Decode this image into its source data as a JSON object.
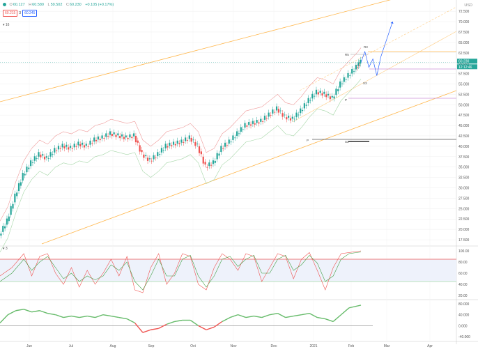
{
  "header": {
    "open_label": "O",
    "open": "60.127",
    "high_label": "H",
    "high": "60.580",
    "low_label": "L",
    "low": "59.502",
    "close_label": "C",
    "close": "60.230",
    "change": "+0.105 (+0.17%)",
    "bid": "60.215",
    "spread": "3",
    "ask": "60.245",
    "period_label": "16"
  },
  "indicator_labels": {
    "stoch": "3"
  },
  "colors": {
    "up": "#26a69a",
    "down": "#ef5350",
    "bg": "#ffffff",
    "grid": "#eeeeee",
    "price_tag": "#26a69a",
    "accent": "#2962ff"
  },
  "chart_data": [
    {
      "type": "candlestick",
      "currency": "USD",
      "x_ticks": [
        "Jun",
        "Jul",
        "Aug",
        "Sep",
        "Oct",
        "Nov",
        "Dec",
        "2021",
        "Feb",
        "Mar",
        "Apr"
      ],
      "y_ticks": [
        "72.500",
        "70.000",
        "67.500",
        "65.000",
        "62.500",
        "60.000",
        "57.500",
        "55.000",
        "52.500",
        "50.000",
        "47.500",
        "45.000",
        "42.500",
        "40.000",
        "37.500",
        "35.000",
        "32.500",
        "30.000",
        "27.500",
        "25.000",
        "22.500",
        "20.000",
        "17.500"
      ],
      "ylim": [
        16.5,
        74.2
      ],
      "last_price": "60.230",
      "countdown": "12:12:46",
      "pivot_labels": [
        "R3",
        "R5",
        "S3",
        "P",
        "P",
        "S3"
      ],
      "close_path": [
        [
          0,
          18.5
        ],
        [
          4,
          22
        ],
        [
          8,
          28
        ],
        [
          12,
          33
        ],
        [
          16,
          36
        ],
        [
          20,
          38
        ],
        [
          24,
          37
        ],
        [
          28,
          39
        ],
        [
          32,
          40
        ],
        [
          36,
          39.5
        ],
        [
          40,
          40.5
        ],
        [
          44,
          40
        ],
        [
          48,
          41.5
        ],
        [
          52,
          42
        ],
        [
          56,
          43
        ],
        [
          60,
          42.5
        ],
        [
          64,
          42
        ],
        [
          68,
          42.5
        ],
        [
          72,
          38
        ],
        [
          76,
          36.5
        ],
        [
          80,
          38
        ],
        [
          84,
          40
        ],
        [
          88,
          40.5
        ],
        [
          92,
          41
        ],
        [
          96,
          42
        ],
        [
          100,
          40
        ],
        [
          104,
          35
        ],
        [
          108,
          36
        ],
        [
          112,
          39.5
        ],
        [
          116,
          41
        ],
        [
          120,
          43
        ],
        [
          124,
          45
        ],
        [
          128,
          45.5
        ],
        [
          132,
          46
        ],
        [
          136,
          47.5
        ],
        [
          140,
          49
        ],
        [
          144,
          47
        ],
        [
          148,
          46.5
        ],
        [
          152,
          48.5
        ],
        [
          156,
          51
        ],
        [
          160,
          53
        ],
        [
          164,
          52.5
        ],
        [
          168,
          51.5
        ],
        [
          172,
          55
        ],
        [
          176,
          57
        ],
        [
          180,
          59
        ],
        [
          182,
          60.2
        ]
      ],
      "forecast_path": [
        [
          182,
          60.2
        ],
        [
          184,
          62.8
        ],
        [
          186,
          59
        ],
        [
          188,
          61
        ],
        [
          190,
          57
        ],
        [
          192,
          61.5
        ],
        [
          198,
          70
        ]
      ]
    },
    {
      "type": "line",
      "name": "stochastic",
      "y_ticks": [
        "100.00",
        "80.00",
        "60.00",
        "40.00",
        "20.00"
      ],
      "ylim": [
        15,
        105
      ],
      "levels": [
        85,
        45
      ],
      "k": [
        [
          0,
          55
        ],
        [
          6,
          70
        ],
        [
          12,
          95
        ],
        [
          16,
          55
        ],
        [
          20,
          90
        ],
        [
          24,
          95
        ],
        [
          28,
          60
        ],
        [
          32,
          40
        ],
        [
          36,
          70
        ],
        [
          40,
          35
        ],
        [
          44,
          65
        ],
        [
          48,
          40
        ],
        [
          52,
          60
        ],
        [
          56,
          85
        ],
        [
          60,
          55
        ],
        [
          64,
          90
        ],
        [
          68,
          30
        ],
        [
          72,
          25
        ],
        [
          76,
          70
        ],
        [
          80,
          95
        ],
        [
          84,
          40
        ],
        [
          88,
          60
        ],
        [
          92,
          95
        ],
        [
          96,
          90
        ],
        [
          100,
          40
        ],
        [
          104,
          30
        ],
        [
          108,
          70
        ],
        [
          112,
          95
        ],
        [
          116,
          85
        ],
        [
          120,
          65
        ],
        [
          124,
          95
        ],
        [
          128,
          90
        ],
        [
          132,
          45
        ],
        [
          136,
          70
        ],
        [
          140,
          95
        ],
        [
          144,
          90
        ],
        [
          148,
          50
        ],
        [
          152,
          85
        ],
        [
          156,
          97
        ],
        [
          160,
          65
        ],
        [
          164,
          30
        ],
        [
          168,
          70
        ],
        [
          172,
          95
        ],
        [
          176,
          97
        ],
        [
          182,
          100
        ]
      ],
      "d": [
        [
          0,
          45
        ],
        [
          6,
          60
        ],
        [
          12,
          85
        ],
        [
          16,
          65
        ],
        [
          20,
          80
        ],
        [
          24,
          90
        ],
        [
          28,
          70
        ],
        [
          32,
          50
        ],
        [
          36,
          60
        ],
        [
          40,
          45
        ],
        [
          44,
          55
        ],
        [
          48,
          48
        ],
        [
          52,
          55
        ],
        [
          56,
          75
        ],
        [
          60,
          65
        ],
        [
          64,
          80
        ],
        [
          68,
          45
        ],
        [
          72,
          30
        ],
        [
          76,
          55
        ],
        [
          80,
          85
        ],
        [
          84,
          55
        ],
        [
          88,
          55
        ],
        [
          92,
          85
        ],
        [
          96,
          92
        ],
        [
          100,
          55
        ],
        [
          104,
          35
        ],
        [
          108,
          55
        ],
        [
          112,
          85
        ],
        [
          116,
          90
        ],
        [
          120,
          72
        ],
        [
          124,
          85
        ],
        [
          128,
          92
        ],
        [
          132,
          60
        ],
        [
          136,
          60
        ],
        [
          140,
          85
        ],
        [
          144,
          92
        ],
        [
          148,
          65
        ],
        [
          152,
          75
        ],
        [
          156,
          92
        ],
        [
          160,
          78
        ],
        [
          164,
          45
        ],
        [
          168,
          55
        ],
        [
          172,
          85
        ],
        [
          176,
          95
        ],
        [
          182,
          98
        ]
      ]
    },
    {
      "type": "line",
      "name": "momentum",
      "y_ticks": [
        "80.000",
        "40.000",
        "0.000",
        "-40.000"
      ],
      "ylim": [
        -50,
        90
      ],
      "zero": 0,
      "values": [
        [
          0,
          10
        ],
        [
          4,
          40
        ],
        [
          8,
          55
        ],
        [
          12,
          60
        ],
        [
          16,
          50
        ],
        [
          20,
          55
        ],
        [
          24,
          45
        ],
        [
          28,
          40
        ],
        [
          32,
          30
        ],
        [
          36,
          35
        ],
        [
          40,
          30
        ],
        [
          44,
          35
        ],
        [
          48,
          30
        ],
        [
          52,
          40
        ],
        [
          56,
          35
        ],
        [
          60,
          30
        ],
        [
          64,
          25
        ],
        [
          68,
          10
        ],
        [
          72,
          -25
        ],
        [
          76,
          -15
        ],
        [
          80,
          -10
        ],
        [
          84,
          5
        ],
        [
          88,
          15
        ],
        [
          92,
          20
        ],
        [
          96,
          20
        ],
        [
          100,
          0
        ],
        [
          104,
          -15
        ],
        [
          108,
          -5
        ],
        [
          112,
          15
        ],
        [
          116,
          30
        ],
        [
          120,
          40
        ],
        [
          124,
          30
        ],
        [
          128,
          35
        ],
        [
          132,
          30
        ],
        [
          136,
          40
        ],
        [
          140,
          45
        ],
        [
          144,
          30
        ],
        [
          148,
          35
        ],
        [
          152,
          40
        ],
        [
          156,
          45
        ],
        [
          160,
          30
        ],
        [
          164,
          25
        ],
        [
          168,
          15
        ],
        [
          172,
          40
        ],
        [
          176,
          65
        ],
        [
          182,
          75
        ]
      ]
    }
  ]
}
